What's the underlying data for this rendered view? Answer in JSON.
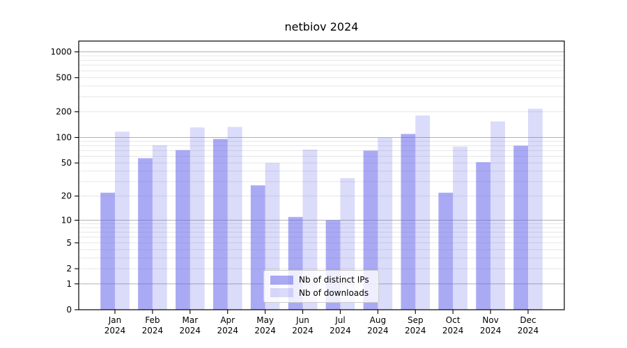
{
  "chart_data": {
    "type": "bar",
    "title": "netbiov 2024",
    "categories": [
      "Jan",
      "Feb",
      "Mar",
      "Apr",
      "May",
      "Jun",
      "Jul",
      "Aug",
      "Sep",
      "Oct",
      "Nov",
      "Dec"
    ],
    "category_year": "2024",
    "series": [
      {
        "name": "Nb of distinct IPs",
        "color": "rgba(100,100,235,0.55)",
        "values": [
          22,
          57,
          71,
          96,
          27,
          11,
          10,
          70,
          110,
          22,
          51,
          80
        ]
      },
      {
        "name": "Nb of downloads",
        "color": "rgba(100,100,235,0.23)",
        "values": [
          117,
          81,
          131,
          133,
          50,
          72,
          33,
          99,
          181,
          78,
          154,
          217
        ]
      }
    ],
    "yscale": "log1p",
    "ylim": [
      0,
      1336
    ],
    "ytick_labels": [
      "1000",
      "500",
      "200",
      "100",
      "50",
      "20",
      "10",
      "5",
      "2",
      "1",
      "0"
    ],
    "yticks": [
      1000,
      500,
      200,
      100,
      50,
      20,
      10,
      5,
      2,
      1,
      0
    ],
    "major_grid_values": [
      1000,
      100,
      10,
      1
    ],
    "minor_grid_values": [
      900,
      800,
      700,
      600,
      500,
      400,
      300,
      200,
      90,
      80,
      70,
      60,
      50,
      40,
      30,
      20,
      9,
      8,
      7,
      6,
      5,
      4,
      3,
      2
    ],
    "grid": true,
    "legend_position": "lower center"
  },
  "colors": {
    "bar_ips": "rgba(100,100,235,0.55)",
    "bar_downloads": "rgba(100,100,235,0.23)",
    "grid_major": "#b0b0b0",
    "grid_minor": "#e6e6e6",
    "spine": "#000000",
    "legend_border": "#cccccc"
  }
}
